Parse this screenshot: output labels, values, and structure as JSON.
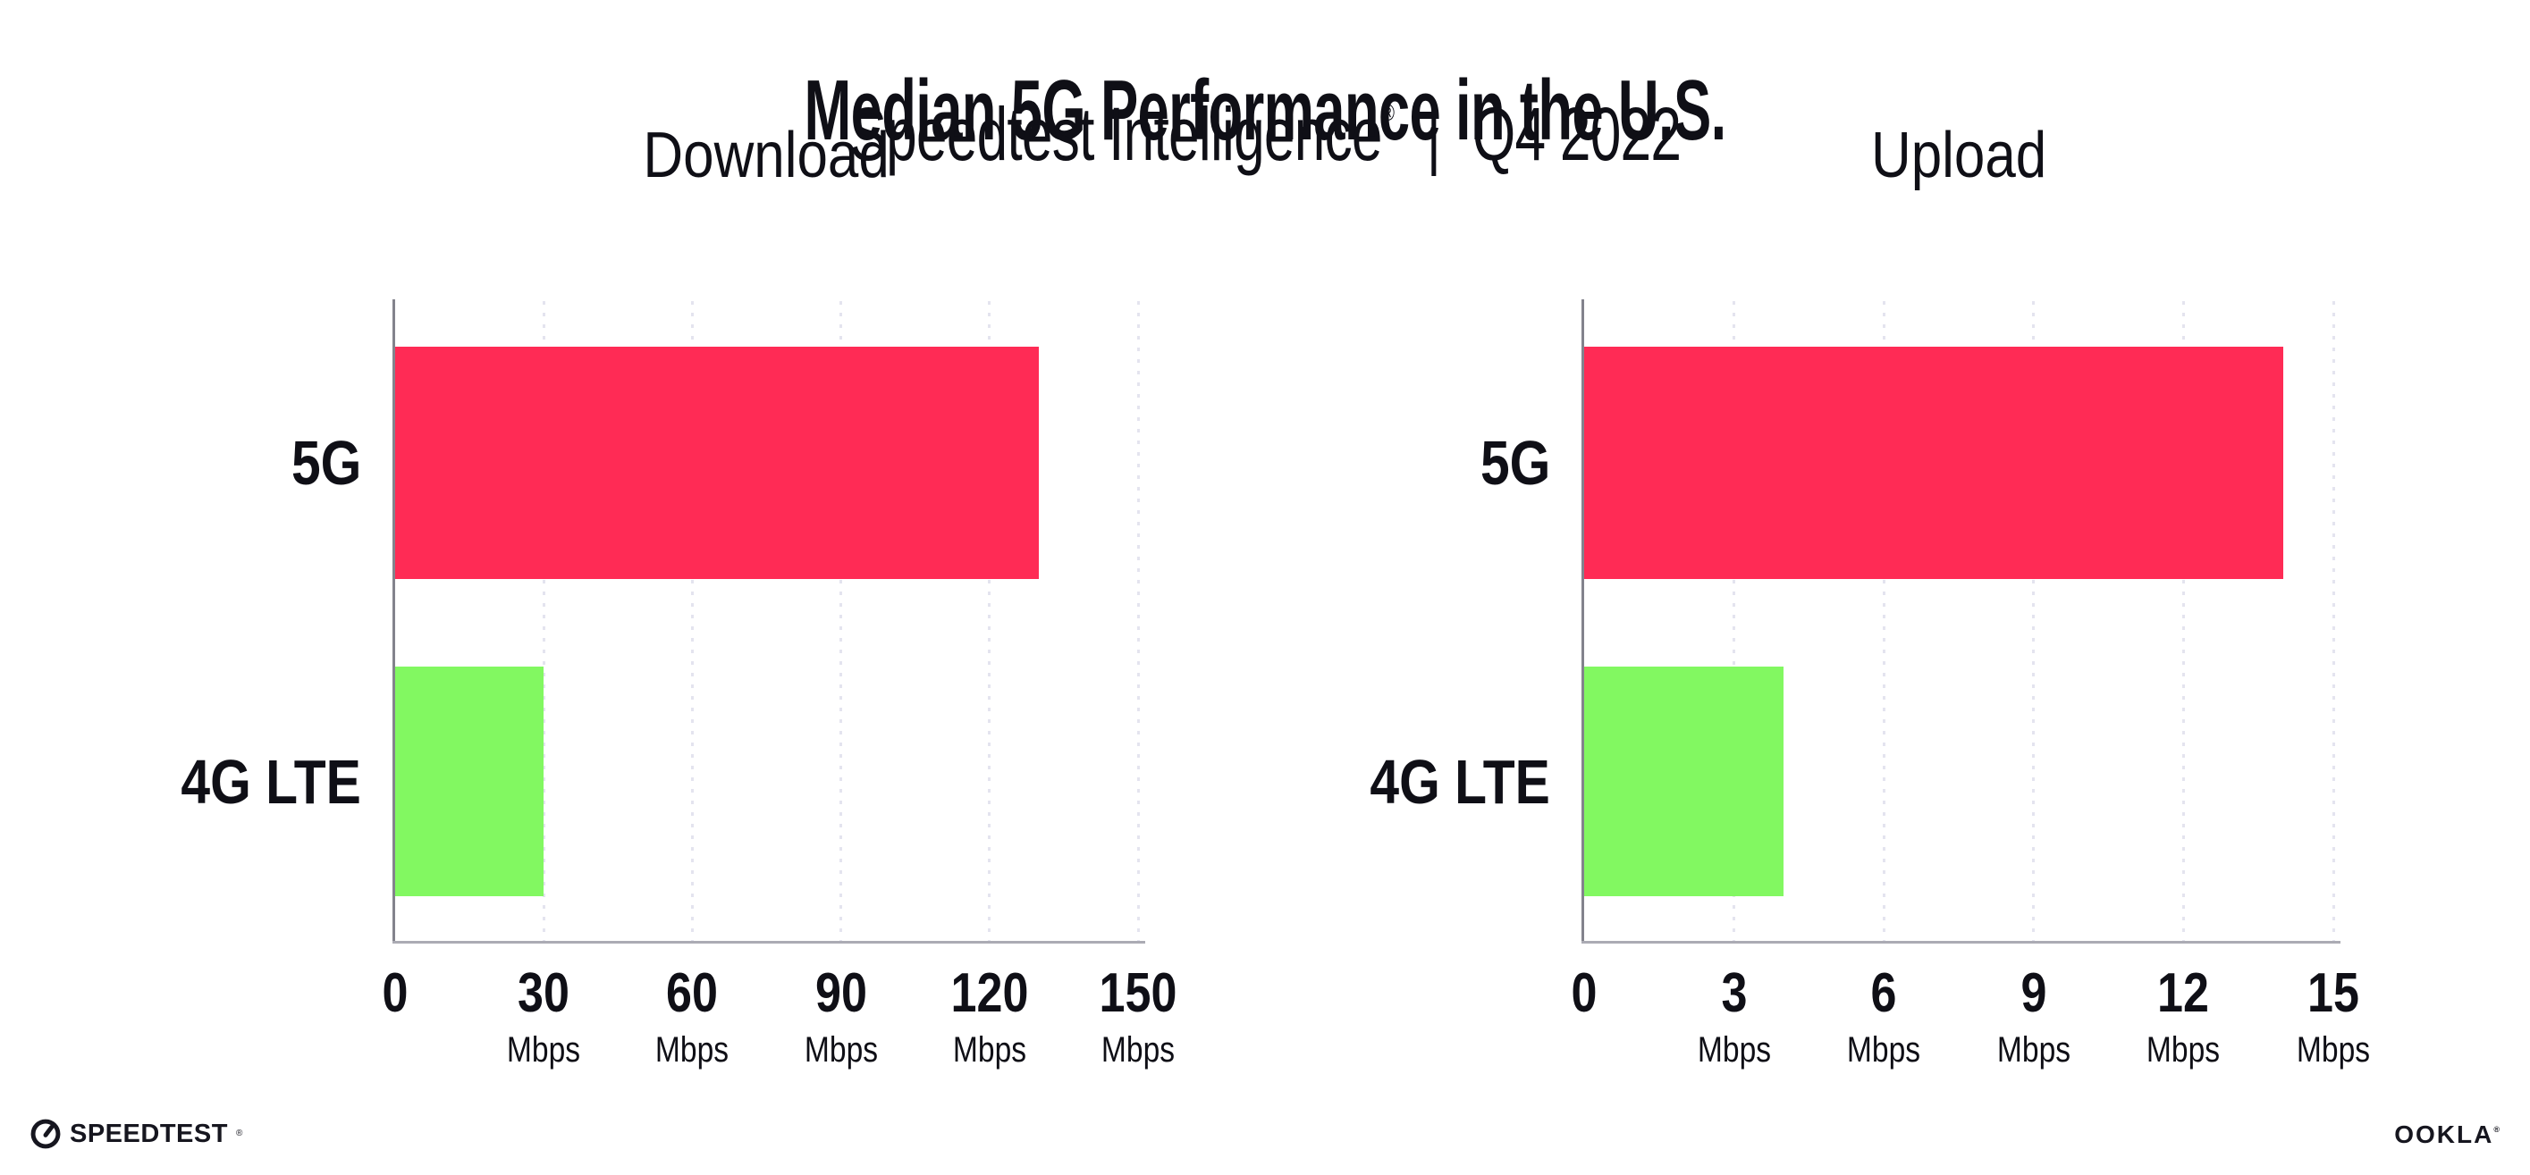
{
  "header": {
    "title": "Median 5G Performance in the U.S.",
    "subtitle_brand": "Speedtest Intelligence",
    "subtitle_reg": "®",
    "subtitle_separator": "|",
    "subtitle_period": "Q4 2022"
  },
  "chart_data": [
    {
      "type": "bar",
      "orientation": "horizontal",
      "title": "Download",
      "categories": [
        "5G",
        "4G LTE"
      ],
      "values": [
        130,
        30
      ],
      "unit": "Mbps",
      "tick_unit": "Mbps",
      "xlim": [
        0,
        150
      ],
      "xticks": [
        0,
        30,
        60,
        90,
        120,
        150
      ],
      "grid": "dotted-vertical",
      "legend": "none",
      "bar_colors": [
        "#FF2B55",
        "#82F861"
      ]
    },
    {
      "type": "bar",
      "orientation": "horizontal",
      "title": "Upload",
      "categories": [
        "5G",
        "4G LTE"
      ],
      "values": [
        14,
        4
      ],
      "unit": "Mbps",
      "tick_unit": "Mbps",
      "xlim": [
        0,
        15
      ],
      "xticks": [
        0,
        3,
        6,
        9,
        12,
        15
      ],
      "grid": "dotted-vertical",
      "legend": "none",
      "bar_colors": [
        "#FF2B55",
        "#82F861"
      ]
    }
  ],
  "colors": {
    "ink": "#0f0f16",
    "grid": "#e4e4ef",
    "axis-x": "#ababb4",
    "axis-y": "#83838d",
    "bar-5g": "#FF2B55",
    "bar-4g": "#82F861"
  },
  "footer": {
    "speedtest_text": "SPEEDTEST",
    "speedtest_reg": "®",
    "ookla_text": "OOKLA",
    "ookla_reg": "®"
  }
}
